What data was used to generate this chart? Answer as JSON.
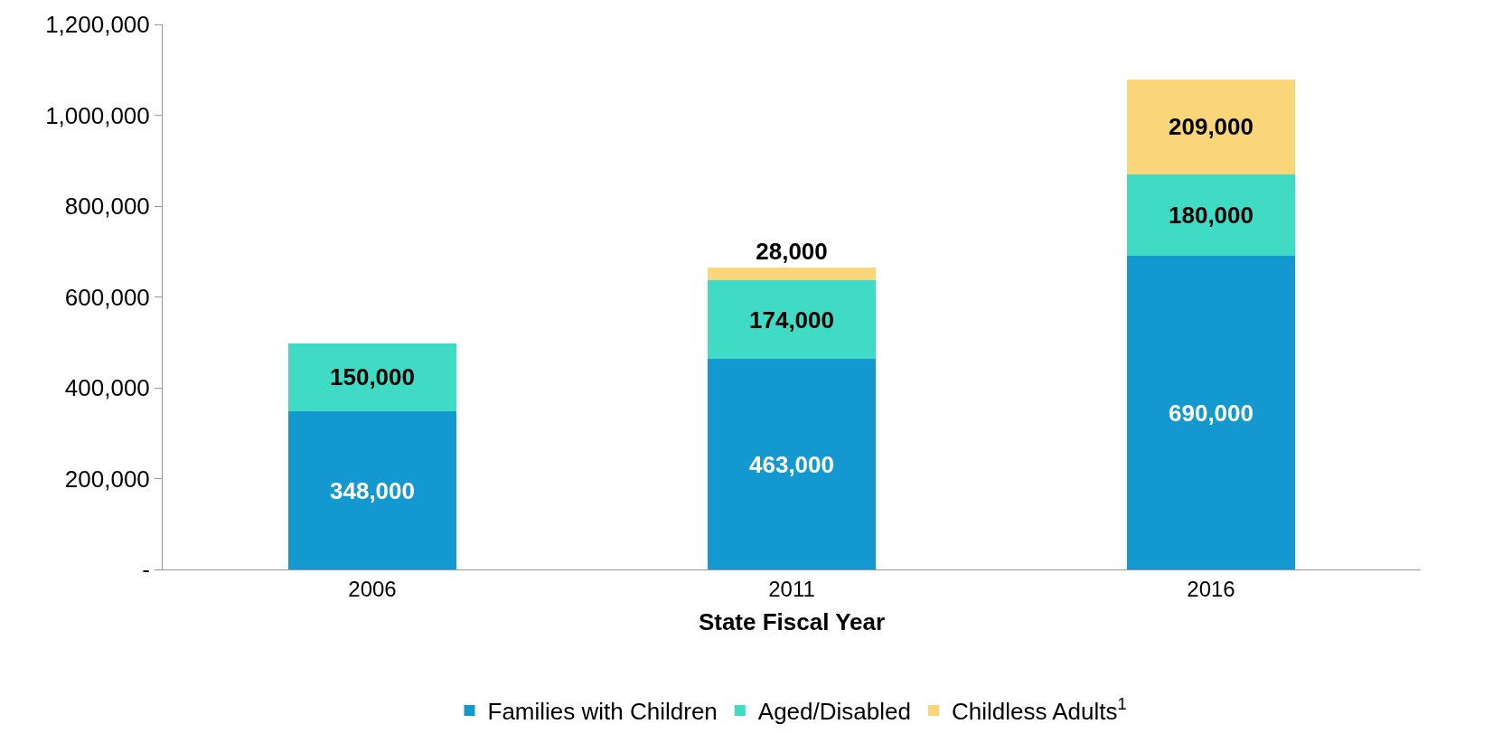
{
  "chart_data": {
    "type": "bar",
    "stacked": true,
    "xlabel": "State Fiscal Year",
    "categories": [
      "2006",
      "2011",
      "2016"
    ],
    "series": [
      {
        "name": "Families with Children",
        "color": "#1399cf",
        "values": [
          348000,
          463000,
          690000
        ],
        "value_labels": [
          "348,000",
          "463,000",
          "690,000"
        ]
      },
      {
        "name": "Aged/Disabled",
        "color": "#40dbc5",
        "values": [
          150000,
          174000,
          180000
        ],
        "value_labels": [
          "150,000",
          "174,000",
          "180,000"
        ]
      },
      {
        "name": "Childless Adults$^{1}$",
        "color": "#fad57a",
        "values": [
          null,
          28000,
          209000
        ],
        "value_labels": [
          null,
          "28,000",
          "209,000"
        ]
      }
    ],
    "ylim": [
      0,
      1200000
    ],
    "yticks": [
      {
        "value": 0,
        "label": "-"
      },
      {
        "value": 200000,
        "label": "200,000"
      },
      {
        "value": 400000,
        "label": "400,000"
      },
      {
        "value": 600000,
        "label": "600,000"
      },
      {
        "value": 800000,
        "label": "800,000"
      },
      {
        "value": 1000000,
        "label": "1,000,000"
      },
      {
        "value": 1200000,
        "label": "1,200,000"
      }
    ],
    "legend": "bottom"
  }
}
